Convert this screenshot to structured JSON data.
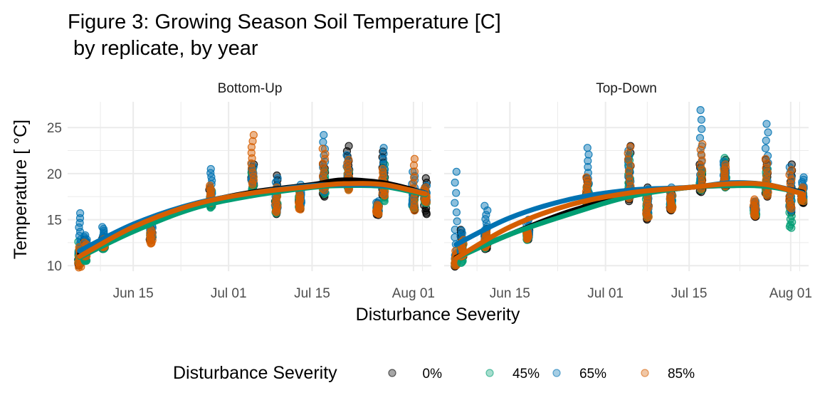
{
  "chart_data": {
    "type": "scatter",
    "title_line1": "Figure 3: Growing Season Soil Temperature [C]",
    "title_line2": " by replicate, by year",
    "xlabel": "Disturbance Severity",
    "ylabel": "Temperature [ °C]",
    "x_range": [
      "2019-06-04",
      "2019-08-04"
    ],
    "ylim": [
      9.4,
      27.8
    ],
    "x_ticks": [
      {
        "date": "2019-06-15",
        "label": "Jun 15"
      },
      {
        "date": "2019-07-01",
        "label": "Jul 01"
      },
      {
        "date": "2019-07-15",
        "label": "Jul 15"
      },
      {
        "date": "2019-08-01",
        "label": "Aug 01"
      }
    ],
    "y_ticks": [
      10,
      15,
      20,
      25
    ],
    "grid": true,
    "legend_position": "bottom",
    "legend_title": "Disturbance Severity",
    "series": [
      {
        "name": "0%",
        "color": "#000000"
      },
      {
        "name": "45%",
        "color": "#009E73"
      },
      {
        "name": "65%",
        "color": "#0072B2"
      },
      {
        "name": "85%",
        "color": "#D55E00"
      }
    ],
    "panels": [
      {
        "label": "Bottom-Up",
        "clusters": [
          {
            "date": "2019-06-06",
            "s": [
              [
                10.0,
                11.0
              ],
              [
                10.4,
                12.6
              ],
              [
                11.4,
                15.7
              ],
              [
                9.8,
                12.0
              ]
            ]
          },
          {
            "date": "2019-06-07",
            "s": [
              [
                11.2,
                12.8
              ],
              [
                10.5,
                11.2
              ],
              [
                12.0,
                13.3
              ],
              [
                11.0,
                12.5
              ]
            ]
          },
          {
            "date": "2019-06-10",
            "s": [
              [
                11.8,
                13.1
              ],
              [
                11.8,
                12.5
              ],
              [
                12.5,
                14.2
              ],
              [
                12.0,
                12.9
              ]
            ]
          },
          {
            "date": "2019-06-18",
            "s": [
              [
                12.8,
                14.0
              ],
              [
                13.0,
                13.8
              ],
              [
                12.9,
                14.3
              ],
              [
                12.4,
                13.9
              ]
            ]
          },
          {
            "date": "2019-06-28",
            "s": [
              [
                16.5,
                18.5
              ],
              [
                16.3,
                18.1
              ],
              [
                17.0,
                20.5
              ],
              [
                16.8,
                18.7
              ]
            ]
          },
          {
            "date": "2019-07-05",
            "s": [
              [
                18.5,
                21.0
              ],
              [
                18.2,
                20.4
              ],
              [
                19.0,
                21.0
              ],
              [
                18.8,
                24.2
              ]
            ]
          },
          {
            "date": "2019-07-09",
            "s": [
              [
                15.6,
                19.8
              ],
              [
                15.7,
                18.2
              ],
              [
                16.0,
                19.5
              ],
              [
                15.8,
                18.5
              ]
            ]
          },
          {
            "date": "2019-07-13",
            "s": [
              [
                16.2,
                18.5
              ],
              [
                16.3,
                17.5
              ],
              [
                16.5,
                18.8
              ],
              [
                16.1,
                17.8
              ]
            ]
          },
          {
            "date": "2019-07-17",
            "s": [
              [
                17.5,
                21.0
              ],
              [
                17.8,
                20.3
              ],
              [
                18.0,
                24.2
              ],
              [
                18.2,
                22.7
              ]
            ]
          },
          {
            "date": "2019-07-21",
            "s": [
              [
                18.5,
                23.0
              ],
              [
                18.3,
                20.5
              ],
              [
                18.6,
                22.0
              ],
              [
                18.2,
                21.5
              ]
            ]
          },
          {
            "date": "2019-07-26",
            "s": [
              [
                15.5,
                16.8
              ],
              [
                15.7,
                16.5
              ],
              [
                15.8,
                17.0
              ],
              [
                15.6,
                16.6
              ]
            ]
          },
          {
            "date": "2019-07-27",
            "s": [
              [
                17.5,
                22.4
              ],
              [
                17.0,
                21.0
              ],
              [
                17.8,
                22.8
              ],
              [
                17.6,
                20.5
              ]
            ]
          },
          {
            "date": "2019-08-01",
            "s": [
              [
                16.0,
                18.0
              ],
              [
                16.2,
                17.5
              ],
              [
                16.5,
                20.2
              ],
              [
                16.0,
                21.6
              ]
            ]
          },
          {
            "date": "2019-08-03",
            "s": [
              [
                15.6,
                19.5
              ],
              [
                16.8,
                18.3
              ],
              [
                17.0,
                18.7
              ],
              [
                16.9,
                18.5
              ]
            ]
          }
        ],
        "smooth": {
          "x": [
            "2019-06-06",
            "2019-06-15",
            "2019-06-25",
            "2019-07-05",
            "2019-07-15",
            "2019-07-20",
            "2019-07-27",
            "2019-08-03"
          ],
          "lines": [
            [
              11.3,
              14.3,
              16.6,
              18.0,
              18.8,
              19.3,
              19.0,
              17.9
            ],
            [
              10.9,
              13.7,
              16.2,
              17.6,
              18.5,
              18.7,
              18.6,
              17.7
            ],
            [
              11.6,
              14.5,
              16.7,
              17.9,
              18.7,
              18.8,
              18.7,
              17.9
            ],
            [
              11.0,
              14.2,
              16.6,
              17.9,
              18.6,
              18.9,
              18.8,
              17.8
            ]
          ]
        }
      },
      {
        "label": "Top-Down",
        "clusters": [
          {
            "date": "2019-06-06",
            "s": [
              [
                9.9,
                11.0
              ],
              [
                10.1,
                11.3
              ],
              [
                10.8,
                20.2
              ],
              [
                10.0,
                11.6
              ]
            ]
          },
          {
            "date": "2019-06-07",
            "s": [
              [
                10.9,
                13.9
              ],
              [
                10.3,
                12.5
              ],
              [
                11.5,
                13.8
              ],
              [
                11.0,
                12.8
              ]
            ]
          },
          {
            "date": "2019-06-11",
            "s": [
              [
                11.8,
                14.0
              ],
              [
                11.9,
                13.5
              ],
              [
                12.5,
                16.5
              ],
              [
                12.0,
                13.8
              ]
            ]
          },
          {
            "date": "2019-06-18",
            "s": [
              [
                12.8,
                14.0
              ],
              [
                12.8,
                13.5
              ],
              [
                13.0,
                15.0
              ],
              [
                12.9,
                13.8
              ]
            ]
          },
          {
            "date": "2019-06-28",
            "s": [
              [
                16.5,
                19.5
              ],
              [
                16.4,
                18.8
              ],
              [
                17.0,
                22.8
              ],
              [
                16.9,
                19.6
              ]
            ]
          },
          {
            "date": "2019-07-05",
            "s": [
              [
                17.0,
                23.0
              ],
              [
                17.5,
                22.0
              ],
              [
                17.5,
                22.5
              ],
              [
                17.3,
                22.9
              ]
            ]
          },
          {
            "date": "2019-07-08",
            "s": [
              [
                15.0,
                18.5
              ],
              [
                15.3,
                17.5
              ],
              [
                15.5,
                18.3
              ],
              [
                15.2,
                18.0
              ]
            ]
          },
          {
            "date": "2019-07-12",
            "s": [
              [
                16.0,
                18.0
              ],
              [
                16.2,
                17.6
              ],
              [
                16.3,
                18.5
              ],
              [
                16.1,
                17.8
              ]
            ]
          },
          {
            "date": "2019-07-17",
            "s": [
              [
                18.0,
                21.0
              ],
              [
                18.2,
                20.5
              ],
              [
                18.5,
                26.9
              ],
              [
                18.3,
                23.2
              ]
            ]
          },
          {
            "date": "2019-07-21",
            "s": [
              [
                18.5,
                21.5
              ],
              [
                18.5,
                21.7
              ],
              [
                18.7,
                21.3
              ],
              [
                18.6,
                21.0
              ]
            ]
          },
          {
            "date": "2019-07-26",
            "s": [
              [
                15.3,
                16.5
              ],
              [
                15.5,
                16.0
              ],
              [
                16.0,
                17.0
              ],
              [
                15.4,
                17.2
              ]
            ]
          },
          {
            "date": "2019-07-28",
            "s": [
              [
                17.5,
                21.5
              ],
              [
                17.8,
                20.5
              ],
              [
                18.0,
                25.4
              ],
              [
                17.6,
                21.6
              ]
            ]
          },
          {
            "date": "2019-08-01",
            "s": [
              [
                15.8,
                21.0
              ],
              [
                14.1,
                18.0
              ],
              [
                16.0,
                20.7
              ],
              [
                16.2,
                20.4
              ]
            ]
          },
          {
            "date": "2019-08-03",
            "s": [
              [
                16.8,
                18.0
              ],
              [
                17.0,
                18.3
              ],
              [
                17.5,
                19.6
              ],
              [
                17.0,
                18.5
              ]
            ]
          }
        ],
        "smooth": {
          "x": [
            "2019-06-06",
            "2019-06-15",
            "2019-06-25",
            "2019-07-05",
            "2019-07-15",
            "2019-07-22",
            "2019-07-28",
            "2019-08-03"
          ],
          "lines": [
            [
              10.9,
              13.4,
              15.9,
              17.6,
              18.5,
              18.7,
              18.7,
              18.0
            ],
            [
              10.8,
              13.4,
              15.6,
              17.5,
              18.5,
              18.7,
              18.6,
              17.9
            ],
            [
              12.3,
              15.2,
              17.2,
              18.2,
              18.5,
              19.0,
              18.8,
              17.9
            ],
            [
              10.8,
              14.2,
              16.6,
              17.9,
              18.5,
              18.9,
              18.8,
              17.8
            ]
          ]
        }
      }
    ]
  }
}
